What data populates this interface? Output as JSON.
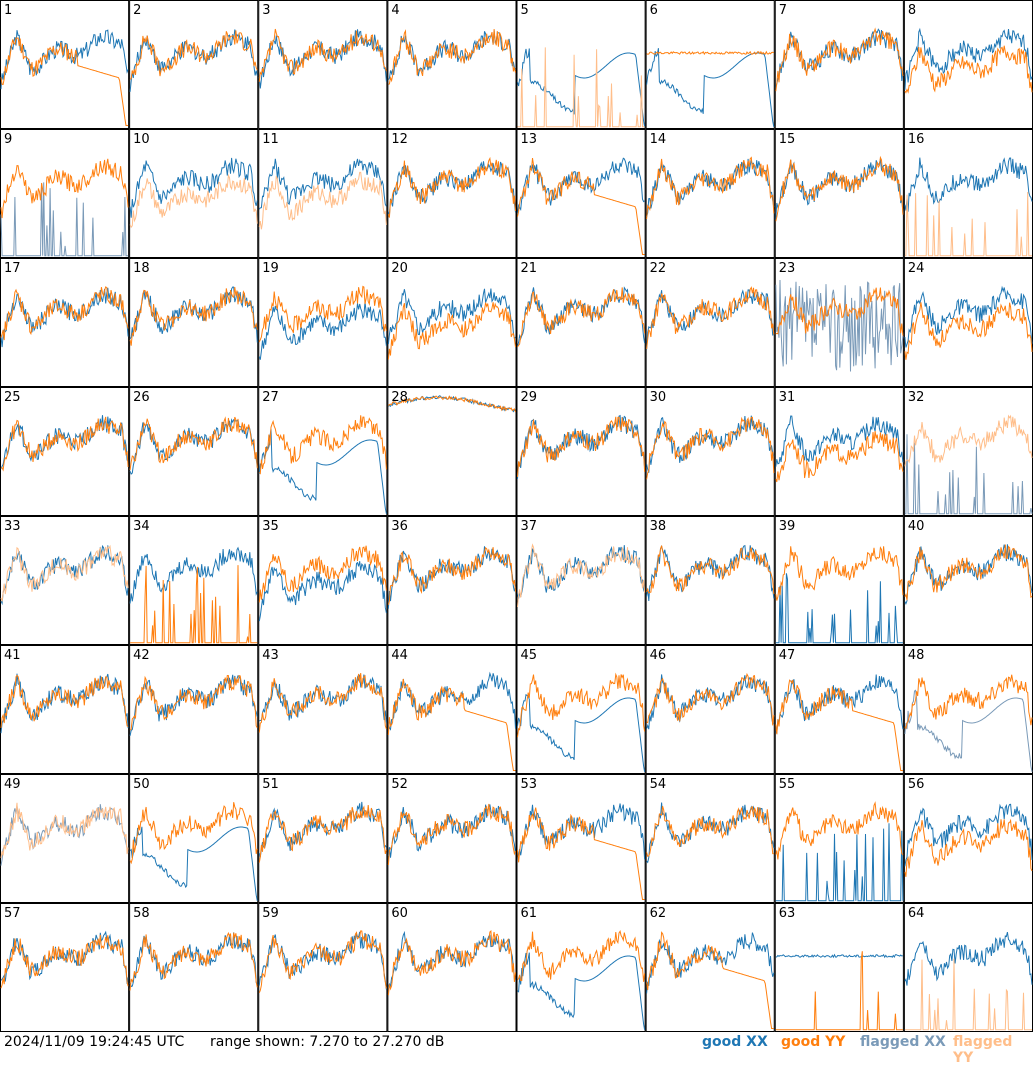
{
  "footer": {
    "timestamp": "2024/11/09 19:24:45 UTC",
    "range_text": "range shown: 7.270 to 27.270 dB",
    "legend": {
      "good_xx": "good XX",
      "good_yy": "good YY",
      "flagged_xx": "flagged XX",
      "flagged_yy": "flagged YY"
    }
  },
  "colors": {
    "good_xx": "#1f77b4",
    "good_yy": "#ff7f0e",
    "flagged_xx": "#7a9ab8",
    "flagged_yy": "#ffbe8a",
    "grid": "#000000"
  },
  "chart_data": {
    "type": "line",
    "range_db": [
      7.27,
      27.27
    ],
    "panels": [
      {
        "label": "1",
        "xx": "good",
        "yy": "good",
        "shape_xx": "normal",
        "shape_yy": "drop"
      },
      {
        "label": "2",
        "xx": "good",
        "yy": "good",
        "shape_xx": "normal",
        "shape_yy": "normal"
      },
      {
        "label": "3",
        "xx": "good",
        "yy": "good",
        "shape_xx": "normal",
        "shape_yy": "normal"
      },
      {
        "label": "4",
        "xx": "good",
        "yy": "good",
        "shape_xx": "normal",
        "shape_yy": "normal"
      },
      {
        "label": "5",
        "xx": "good",
        "yy": "flagged",
        "shape_xx": "dip",
        "shape_yy": "spikes"
      },
      {
        "label": "6",
        "xx": "good",
        "yy": "good",
        "shape_xx": "dip",
        "shape_yy": "flat"
      },
      {
        "label": "7",
        "xx": "good",
        "yy": "good",
        "shape_xx": "normal",
        "shape_yy": "normal"
      },
      {
        "label": "8",
        "xx": "good",
        "yy": "good",
        "shape_xx": "normal",
        "shape_yy": "low"
      },
      {
        "label": "9",
        "xx": "flagged",
        "yy": "good",
        "shape_xx": "spikes",
        "shape_yy": "normal"
      },
      {
        "label": "10",
        "xx": "good",
        "yy": "flagged",
        "shape_xx": "normal",
        "shape_yy": "low"
      },
      {
        "label": "11",
        "xx": "good",
        "yy": "flagged",
        "shape_xx": "normal",
        "shape_yy": "low"
      },
      {
        "label": "12",
        "xx": "good",
        "yy": "good",
        "shape_xx": "normal",
        "shape_yy": "normal"
      },
      {
        "label": "13",
        "xx": "good",
        "yy": "good",
        "shape_xx": "normal",
        "shape_yy": "drop"
      },
      {
        "label": "14",
        "xx": "good",
        "yy": "good",
        "shape_xx": "normal",
        "shape_yy": "normal"
      },
      {
        "label": "15",
        "xx": "good",
        "yy": "good",
        "shape_xx": "normal",
        "shape_yy": "normal"
      },
      {
        "label": "16",
        "xx": "good",
        "yy": "flagged",
        "shape_xx": "normal",
        "shape_yy": "spikes"
      },
      {
        "label": "17",
        "xx": "good",
        "yy": "good",
        "shape_xx": "normal",
        "shape_yy": "normal"
      },
      {
        "label": "18",
        "xx": "good",
        "yy": "good",
        "shape_xx": "normal",
        "shape_yy": "normal"
      },
      {
        "label": "19",
        "xx": "good",
        "yy": "good",
        "shape_xx": "low",
        "shape_yy": "normal"
      },
      {
        "label": "20",
        "xx": "good",
        "yy": "good",
        "shape_xx": "normal",
        "shape_yy": "low"
      },
      {
        "label": "21",
        "xx": "good",
        "yy": "good",
        "shape_xx": "normal",
        "shape_yy": "normal"
      },
      {
        "label": "22",
        "xx": "good",
        "yy": "good",
        "shape_xx": "normal",
        "shape_yy": "normal"
      },
      {
        "label": "23",
        "xx": "flagged",
        "yy": "good",
        "shape_xx": "noisy",
        "shape_yy": "normal"
      },
      {
        "label": "24",
        "xx": "good",
        "yy": "good",
        "shape_xx": "normal",
        "shape_yy": "low"
      },
      {
        "label": "25",
        "xx": "good",
        "yy": "good",
        "shape_xx": "normal",
        "shape_yy": "normal"
      },
      {
        "label": "26",
        "xx": "good",
        "yy": "good",
        "shape_xx": "normal",
        "shape_yy": "normal"
      },
      {
        "label": "27",
        "xx": "good",
        "yy": "good",
        "shape_xx": "dip",
        "shape_yy": "normal"
      },
      {
        "label": "28",
        "xx": "good",
        "yy": "good",
        "shape_xx": "high",
        "shape_yy": "high"
      },
      {
        "label": "29",
        "xx": "good",
        "yy": "good",
        "shape_xx": "normal",
        "shape_yy": "normal"
      },
      {
        "label": "30",
        "xx": "good",
        "yy": "good",
        "shape_xx": "normal",
        "shape_yy": "normal"
      },
      {
        "label": "31",
        "xx": "good",
        "yy": "good",
        "shape_xx": "normal",
        "shape_yy": "low"
      },
      {
        "label": "32",
        "xx": "flagged",
        "yy": "flagged",
        "shape_xx": "spikes",
        "shape_yy": "normal"
      },
      {
        "label": "33",
        "xx": "good",
        "yy": "flagged",
        "shape_xx": "normal",
        "shape_yy": "normal"
      },
      {
        "label": "34",
        "xx": "good",
        "yy": "good",
        "shape_xx": "normal",
        "shape_yy": "spikes"
      },
      {
        "label": "35",
        "xx": "good",
        "yy": "good",
        "shape_xx": "low",
        "shape_yy": "normal"
      },
      {
        "label": "36",
        "xx": "good",
        "yy": "good",
        "shape_xx": "normal",
        "shape_yy": "normal"
      },
      {
        "label": "37",
        "xx": "good",
        "yy": "flagged",
        "shape_xx": "normal",
        "shape_yy": "normal"
      },
      {
        "label": "38",
        "xx": "good",
        "yy": "good",
        "shape_xx": "normal",
        "shape_yy": "normal"
      },
      {
        "label": "39",
        "xx": "good",
        "yy": "good",
        "shape_xx": "spikes",
        "shape_yy": "normal"
      },
      {
        "label": "40",
        "xx": "good",
        "yy": "good",
        "shape_xx": "normal",
        "shape_yy": "normal"
      },
      {
        "label": "41",
        "xx": "good",
        "yy": "good",
        "shape_xx": "normal",
        "shape_yy": "normal"
      },
      {
        "label": "42",
        "xx": "good",
        "yy": "good",
        "shape_xx": "normal",
        "shape_yy": "normal"
      },
      {
        "label": "43",
        "xx": "good",
        "yy": "good",
        "shape_xx": "normal",
        "shape_yy": "normal"
      },
      {
        "label": "44",
        "xx": "good",
        "yy": "good",
        "shape_xx": "normal",
        "shape_yy": "drop"
      },
      {
        "label": "45",
        "xx": "good",
        "yy": "good",
        "shape_xx": "dip",
        "shape_yy": "normal"
      },
      {
        "label": "46",
        "xx": "good",
        "yy": "good",
        "shape_xx": "normal",
        "shape_yy": "normal"
      },
      {
        "label": "47",
        "xx": "good",
        "yy": "good",
        "shape_xx": "normal",
        "shape_yy": "drop"
      },
      {
        "label": "48",
        "xx": "flagged",
        "yy": "good",
        "shape_xx": "dip",
        "shape_yy": "normal"
      },
      {
        "label": "49",
        "xx": "flagged",
        "yy": "flagged",
        "shape_xx": "normal",
        "shape_yy": "normal"
      },
      {
        "label": "50",
        "xx": "good",
        "yy": "good",
        "shape_xx": "dip",
        "shape_yy": "normal"
      },
      {
        "label": "51",
        "xx": "good",
        "yy": "good",
        "shape_xx": "normal",
        "shape_yy": "normal"
      },
      {
        "label": "52",
        "xx": "good",
        "yy": "good",
        "shape_xx": "normal",
        "shape_yy": "normal"
      },
      {
        "label": "53",
        "xx": "good",
        "yy": "good",
        "shape_xx": "normal",
        "shape_yy": "drop"
      },
      {
        "label": "54",
        "xx": "good",
        "yy": "good",
        "shape_xx": "normal",
        "shape_yy": "normal"
      },
      {
        "label": "55",
        "xx": "good",
        "yy": "good",
        "shape_xx": "spikes",
        "shape_yy": "normal"
      },
      {
        "label": "56",
        "xx": "good",
        "yy": "good",
        "shape_xx": "normal",
        "shape_yy": "low"
      },
      {
        "label": "57",
        "xx": "good",
        "yy": "good",
        "shape_xx": "normal",
        "shape_yy": "normal"
      },
      {
        "label": "58",
        "xx": "good",
        "yy": "good",
        "shape_xx": "normal",
        "shape_yy": "normal"
      },
      {
        "label": "59",
        "xx": "good",
        "yy": "good",
        "shape_xx": "normal",
        "shape_yy": "normal"
      },
      {
        "label": "60",
        "xx": "good",
        "yy": "good",
        "shape_xx": "normal",
        "shape_yy": "normal"
      },
      {
        "label": "61",
        "xx": "good",
        "yy": "good",
        "shape_xx": "dip",
        "shape_yy": "normal"
      },
      {
        "label": "62",
        "xx": "good",
        "yy": "good",
        "shape_xx": "normal",
        "shape_yy": "drop"
      },
      {
        "label": "63",
        "xx": "good",
        "yy": "good",
        "shape_xx": "flat",
        "shape_yy": "spikes"
      },
      {
        "label": "64",
        "xx": "good",
        "yy": "flagged",
        "shape_xx": "normal",
        "shape_yy": "spikes"
      }
    ]
  }
}
